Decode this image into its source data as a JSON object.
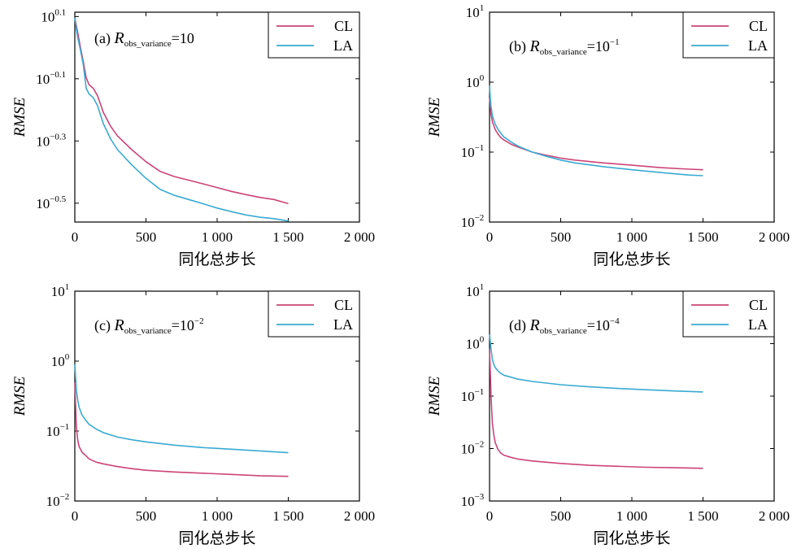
{
  "colors": {
    "CL": "#cc4477",
    "LA": "#3aaad2"
  },
  "chart_data": [
    {
      "type": "line",
      "annotation": {
        "prefix": "(a) ",
        "r": "R",
        "sub": "obs_variance",
        "rest": "=10",
        "sup": ""
      },
      "xlabel": "同化总步长",
      "ylabel": "RMSE",
      "xlim": [
        0,
        2000
      ],
      "ylim": [
        0.275,
        1.3
      ],
      "y_scale": "log",
      "x_ticks": [
        0,
        500,
        1000,
        1500,
        2000
      ],
      "x_tick_labels": [
        "0",
        "500",
        "1 000",
        "1 500",
        "2 000"
      ],
      "y_ticks": [
        1.2589,
        0.7943,
        0.5012,
        0.3162
      ],
      "y_tick_labels": [
        {
          "base": "10",
          "exp": "0.1"
        },
        {
          "base": "10",
          "exp": "−0.1"
        },
        {
          "base": "10",
          "exp": "−0.3"
        },
        {
          "base": "10",
          "exp": "−0.5"
        }
      ],
      "legend": {
        "position": "top-right",
        "entries": [
          "CL",
          "LA"
        ]
      },
      "grid": false,
      "series": [
        {
          "name": "CL",
          "x": [
            0,
            10,
            20,
            40,
            60,
            80,
            100,
            130,
            160,
            200,
            250,
            300,
            400,
            500,
            600,
            700,
            800,
            900,
            1000,
            1100,
            1200,
            1300,
            1400,
            1500
          ],
          "y": [
            1.25,
            1.18,
            1.12,
            1.0,
            0.9,
            0.8,
            0.76,
            0.74,
            0.7,
            0.62,
            0.56,
            0.52,
            0.47,
            0.43,
            0.4,
            0.385,
            0.375,
            0.365,
            0.355,
            0.345,
            0.337,
            0.33,
            0.325,
            0.315
          ]
        },
        {
          "name": "LA",
          "x": [
            0,
            10,
            20,
            40,
            60,
            80,
            100,
            130,
            160,
            200,
            250,
            300,
            400,
            500,
            600,
            700,
            800,
            900,
            1000,
            1100,
            1200,
            1300,
            1400,
            1500
          ],
          "y": [
            1.25,
            1.15,
            1.08,
            0.98,
            0.88,
            0.74,
            0.71,
            0.69,
            0.65,
            0.57,
            0.51,
            0.47,
            0.42,
            0.38,
            0.35,
            0.335,
            0.325,
            0.315,
            0.305,
            0.297,
            0.29,
            0.285,
            0.282,
            0.277
          ]
        }
      ]
    },
    {
      "type": "line",
      "annotation": {
        "prefix": "(b) ",
        "r": "R",
        "sub": "obs_variance",
        "rest": "=10",
        "sup": "−1"
      },
      "xlabel": "同化总步长",
      "ylabel": "RMSE",
      "xlim": [
        0,
        2000
      ],
      "ylim": [
        0.01,
        10
      ],
      "y_scale": "log",
      "x_ticks": [
        0,
        500,
        1000,
        1500,
        2000
      ],
      "x_tick_labels": [
        "0",
        "500",
        "1 000",
        "1 500",
        "2 000"
      ],
      "y_ticks": [
        10,
        1,
        0.1,
        0.01
      ],
      "y_tick_labels": [
        {
          "base": "10",
          "exp": "1"
        },
        {
          "base": "10",
          "exp": "0"
        },
        {
          "base": "10",
          "exp": "−1"
        },
        {
          "base": "10",
          "exp": "−2"
        }
      ],
      "legend": {
        "position": "top-right",
        "entries": [
          "CL",
          "LA"
        ]
      },
      "grid": false,
      "series": [
        {
          "name": "CL",
          "x": [
            0,
            5,
            10,
            20,
            40,
            60,
            80,
            100,
            150,
            200,
            300,
            400,
            500,
            600,
            800,
            1000,
            1200,
            1400,
            1500
          ],
          "y": [
            0.6,
            0.45,
            0.35,
            0.27,
            0.21,
            0.18,
            0.16,
            0.15,
            0.13,
            0.118,
            0.1,
            0.09,
            0.082,
            0.077,
            0.07,
            0.065,
            0.06,
            0.057,
            0.056
          ]
        },
        {
          "name": "LA",
          "x": [
            0,
            5,
            10,
            20,
            40,
            60,
            80,
            100,
            150,
            200,
            300,
            400,
            500,
            600,
            800,
            1000,
            1200,
            1400,
            1500
          ],
          "y": [
            0.9,
            0.6,
            0.45,
            0.33,
            0.25,
            0.21,
            0.185,
            0.165,
            0.14,
            0.122,
            0.1,
            0.087,
            0.077,
            0.07,
            0.062,
            0.056,
            0.051,
            0.047,
            0.046
          ]
        }
      ]
    },
    {
      "type": "line",
      "annotation": {
        "prefix": "(c) ",
        "r": "R",
        "sub": "obs_variance",
        "rest": "=10",
        "sup": "−2"
      },
      "xlabel": "同化总步长",
      "ylabel": "RMSE",
      "xlim": [
        0,
        2000
      ],
      "ylim": [
        0.01,
        10
      ],
      "y_scale": "log",
      "x_ticks": [
        0,
        500,
        1000,
        1500,
        2000
      ],
      "x_tick_labels": [
        "0",
        "500",
        "1 000",
        "1 500",
        "2 000"
      ],
      "y_ticks": [
        10,
        1,
        0.1,
        0.01
      ],
      "y_tick_labels": [
        {
          "base": "10",
          "exp": "1"
        },
        {
          "base": "10",
          "exp": "0"
        },
        {
          "base": "10",
          "exp": "−1"
        },
        {
          "base": "10",
          "exp": "−2"
        }
      ],
      "legend": {
        "position": "top-right",
        "entries": [
          "CL",
          "LA"
        ]
      },
      "grid": false,
      "series": [
        {
          "name": "CL",
          "x": [
            0,
            5,
            10,
            20,
            30,
            50,
            80,
            100,
            150,
            200,
            300,
            400,
            500,
            700,
            900,
            1100,
            1300,
            1500
          ],
          "y": [
            0.5,
            0.25,
            0.12,
            0.075,
            0.06,
            0.05,
            0.044,
            0.04,
            0.036,
            0.034,
            0.031,
            0.029,
            0.0275,
            0.026,
            0.025,
            0.024,
            0.023,
            0.0225
          ]
        },
        {
          "name": "LA",
          "x": [
            0,
            5,
            10,
            20,
            30,
            50,
            80,
            100,
            150,
            200,
            300,
            400,
            500,
            700,
            900,
            1100,
            1300,
            1500
          ],
          "y": [
            0.9,
            0.6,
            0.4,
            0.28,
            0.22,
            0.17,
            0.14,
            0.125,
            0.107,
            0.095,
            0.082,
            0.075,
            0.07,
            0.063,
            0.058,
            0.055,
            0.052,
            0.049
          ]
        }
      ]
    },
    {
      "type": "line",
      "annotation": {
        "prefix": "(d) ",
        "r": "R",
        "sub": "obs_variance",
        "rest": "=10",
        "sup": "−4"
      },
      "xlabel": "同化总步长",
      "ylabel": "RMSE",
      "xlim": [
        0,
        2000
      ],
      "ylim": [
        0.001,
        10
      ],
      "y_scale": "log",
      "x_ticks": [
        0,
        500,
        1000,
        1500,
        2000
      ],
      "x_tick_labels": [
        "0",
        "500",
        "1 000",
        "1 500",
        "2 000"
      ],
      "y_ticks": [
        10,
        1,
        0.1,
        0.01,
        0.001
      ],
      "y_tick_labels": [
        {
          "base": "10",
          "exp": "1"
        },
        {
          "base": "10",
          "exp": "0"
        },
        {
          "base": "10",
          "exp": "−1"
        },
        {
          "base": "10",
          "exp": "−2"
        },
        {
          "base": "10",
          "exp": "−3"
        }
      ],
      "legend": {
        "position": "top-right",
        "entries": [
          "CL",
          "LA"
        ]
      },
      "grid": false,
      "series": [
        {
          "name": "CL",
          "x": [
            0,
            5,
            10,
            20,
            30,
            40,
            60,
            80,
            100,
            150,
            200,
            300,
            500,
            700,
            900,
            1100,
            1300,
            1500
          ],
          "y": [
            0.8,
            0.3,
            0.1,
            0.03,
            0.018,
            0.013,
            0.0095,
            0.0082,
            0.0075,
            0.0068,
            0.0063,
            0.0058,
            0.0052,
            0.0048,
            0.0046,
            0.0044,
            0.0043,
            0.0042
          ]
        },
        {
          "name": "LA",
          "x": [
            0,
            5,
            10,
            20,
            30,
            40,
            60,
            80,
            100,
            150,
            200,
            300,
            500,
            700,
            900,
            1100,
            1300,
            1500
          ],
          "y": [
            1.5,
            1.1,
            0.8,
            0.5,
            0.4,
            0.35,
            0.3,
            0.27,
            0.25,
            0.23,
            0.21,
            0.19,
            0.165,
            0.15,
            0.14,
            0.132,
            0.125,
            0.12
          ]
        }
      ]
    }
  ]
}
